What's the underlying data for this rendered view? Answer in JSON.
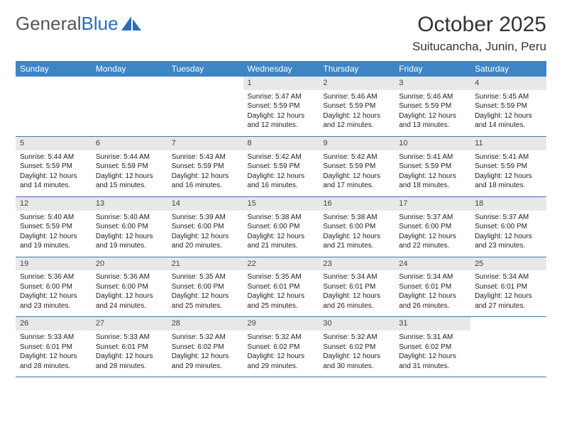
{
  "brand": {
    "text_general": "General",
    "text_blue": "Blue"
  },
  "title": "October 2025",
  "location": "Suitucancha, Junin, Peru",
  "weekdays": [
    "Sunday",
    "Monday",
    "Tuesday",
    "Wednesday",
    "Thursday",
    "Friday",
    "Saturday"
  ],
  "colors": {
    "header": "#3d85c6",
    "border": "#4a7299",
    "daynum_bg": "#e8e8e8",
    "logo_accent": "#2a6db8"
  },
  "weeks": [
    [
      null,
      null,
      null,
      {
        "n": "1",
        "sr": "5:47 AM",
        "ss": "5:59 PM",
        "dl": "12 hours and 12 minutes."
      },
      {
        "n": "2",
        "sr": "5:46 AM",
        "ss": "5:59 PM",
        "dl": "12 hours and 12 minutes."
      },
      {
        "n": "3",
        "sr": "5:46 AM",
        "ss": "5:59 PM",
        "dl": "12 hours and 13 minutes."
      },
      {
        "n": "4",
        "sr": "5:45 AM",
        "ss": "5:59 PM",
        "dl": "12 hours and 14 minutes."
      }
    ],
    [
      {
        "n": "5",
        "sr": "5:44 AM",
        "ss": "5:59 PM",
        "dl": "12 hours and 14 minutes."
      },
      {
        "n": "6",
        "sr": "5:44 AM",
        "ss": "5:59 PM",
        "dl": "12 hours and 15 minutes."
      },
      {
        "n": "7",
        "sr": "5:43 AM",
        "ss": "5:59 PM",
        "dl": "12 hours and 16 minutes."
      },
      {
        "n": "8",
        "sr": "5:42 AM",
        "ss": "5:59 PM",
        "dl": "12 hours and 16 minutes."
      },
      {
        "n": "9",
        "sr": "5:42 AM",
        "ss": "5:59 PM",
        "dl": "12 hours and 17 minutes."
      },
      {
        "n": "10",
        "sr": "5:41 AM",
        "ss": "5:59 PM",
        "dl": "12 hours and 18 minutes."
      },
      {
        "n": "11",
        "sr": "5:41 AM",
        "ss": "5:59 PM",
        "dl": "12 hours and 18 minutes."
      }
    ],
    [
      {
        "n": "12",
        "sr": "5:40 AM",
        "ss": "5:59 PM",
        "dl": "12 hours and 19 minutes."
      },
      {
        "n": "13",
        "sr": "5:40 AM",
        "ss": "6:00 PM",
        "dl": "12 hours and 19 minutes."
      },
      {
        "n": "14",
        "sr": "5:39 AM",
        "ss": "6:00 PM",
        "dl": "12 hours and 20 minutes."
      },
      {
        "n": "15",
        "sr": "5:38 AM",
        "ss": "6:00 PM",
        "dl": "12 hours and 21 minutes."
      },
      {
        "n": "16",
        "sr": "5:38 AM",
        "ss": "6:00 PM",
        "dl": "12 hours and 21 minutes."
      },
      {
        "n": "17",
        "sr": "5:37 AM",
        "ss": "6:00 PM",
        "dl": "12 hours and 22 minutes."
      },
      {
        "n": "18",
        "sr": "5:37 AM",
        "ss": "6:00 PM",
        "dl": "12 hours and 23 minutes."
      }
    ],
    [
      {
        "n": "19",
        "sr": "5:36 AM",
        "ss": "6:00 PM",
        "dl": "12 hours and 23 minutes."
      },
      {
        "n": "20",
        "sr": "5:36 AM",
        "ss": "6:00 PM",
        "dl": "12 hours and 24 minutes."
      },
      {
        "n": "21",
        "sr": "5:35 AM",
        "ss": "6:00 PM",
        "dl": "12 hours and 25 minutes."
      },
      {
        "n": "22",
        "sr": "5:35 AM",
        "ss": "6:01 PM",
        "dl": "12 hours and 25 minutes."
      },
      {
        "n": "23",
        "sr": "5:34 AM",
        "ss": "6:01 PM",
        "dl": "12 hours and 26 minutes."
      },
      {
        "n": "24",
        "sr": "5:34 AM",
        "ss": "6:01 PM",
        "dl": "12 hours and 26 minutes."
      },
      {
        "n": "25",
        "sr": "5:34 AM",
        "ss": "6:01 PM",
        "dl": "12 hours and 27 minutes."
      }
    ],
    [
      {
        "n": "26",
        "sr": "5:33 AM",
        "ss": "6:01 PM",
        "dl": "12 hours and 28 minutes."
      },
      {
        "n": "27",
        "sr": "5:33 AM",
        "ss": "6:01 PM",
        "dl": "12 hours and 28 minutes."
      },
      {
        "n": "28",
        "sr": "5:32 AM",
        "ss": "6:02 PM",
        "dl": "12 hours and 29 minutes."
      },
      {
        "n": "29",
        "sr": "5:32 AM",
        "ss": "6:02 PM",
        "dl": "12 hours and 29 minutes."
      },
      {
        "n": "30",
        "sr": "5:32 AM",
        "ss": "6:02 PM",
        "dl": "12 hours and 30 minutes."
      },
      {
        "n": "31",
        "sr": "5:31 AM",
        "ss": "6:02 PM",
        "dl": "12 hours and 31 minutes."
      },
      null
    ]
  ],
  "labels": {
    "sunrise": "Sunrise:",
    "sunset": "Sunset:",
    "daylight": "Daylight:"
  }
}
